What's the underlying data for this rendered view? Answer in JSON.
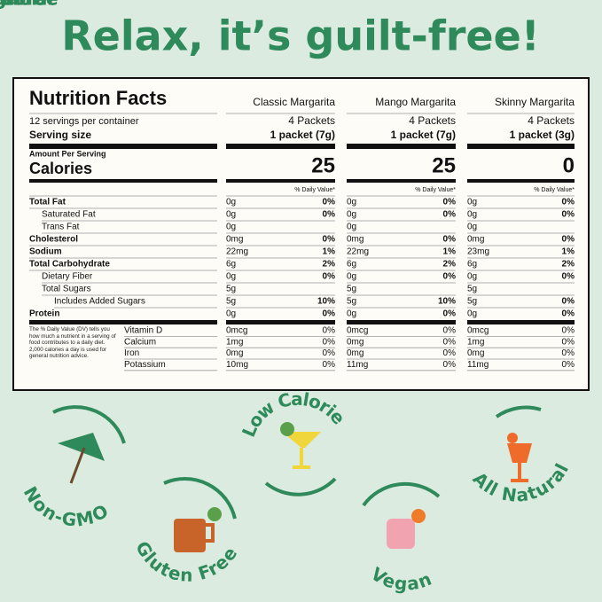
{
  "header": {
    "title": "Relax, it’s guilt-free!"
  },
  "label": {
    "title": "Nutrition Facts",
    "servings": "12 servings per container",
    "serving_size": "Serving size",
    "amount_per_serving": "Amount Per Serving",
    "calories": "Calories",
    "nutrients": [
      "Total Fat",
      "Saturated Fat",
      "Trans Fat",
      "Cholesterol",
      "Sodium",
      "Total Carbohydrate",
      "Dietary Fiber",
      "Total Sugars",
      "Includes Added Sugars",
      "Protein"
    ],
    "vitamins": [
      "Vitamin D",
      "Calcium",
      "Iron",
      "Potassium"
    ],
    "footnote": "The % Daily Value (DV) tells you how much a nutrient in a serving of food contributes to a daily diet. 2,000 calories a day is used for general nutrition advice."
  },
  "products": [
    {
      "name": "Classic Margarita",
      "servings": "4 Packets",
      "serving_size": "1 packet (7g)",
      "calories": "25",
      "daily_value": "% Daily Value*",
      "nutrients": [
        [
          "0g",
          "0%"
        ],
        [
          "0g",
          "0%"
        ],
        [
          "0g"
        ],
        [
          "0mg",
          "0%"
        ],
        [
          "22mg",
          "1%"
        ],
        [
          "6g",
          "2%"
        ],
        [
          "0g",
          "0%"
        ],
        [
          "5g"
        ],
        [
          "5g",
          "10%"
        ],
        [
          "0g",
          "0%"
        ]
      ],
      "vitamins": [
        [
          "0mcg",
          "0%"
        ],
        [
          "1mg",
          "0%"
        ],
        [
          "0mg",
          "0%"
        ],
        [
          "10mg",
          "0%"
        ]
      ]
    },
    {
      "name": "Mango Margarita",
      "servings": "4 Packets",
      "serving_size": "1 packet (7g)",
      "calories": "25",
      "daily_value": "% Daily Value*",
      "nutrients": [
        [
          "0g",
          "0%"
        ],
        [
          "0g",
          "0%"
        ],
        [
          "0g"
        ],
        [
          "0mg",
          "0%"
        ],
        [
          "22mg",
          "1%"
        ],
        [
          "6g",
          "2%"
        ],
        [
          "0g",
          "0%"
        ],
        [
          "5g"
        ],
        [
          "5g",
          "10%"
        ],
        [
          "0g",
          "0%"
        ]
      ],
      "vitamins": [
        [
          "0mcg",
          "0%"
        ],
        [
          "0mg",
          "0%"
        ],
        [
          "0mg",
          "0%"
        ],
        [
          "11mg",
          "0%"
        ]
      ]
    },
    {
      "name": "Skinny Margarita",
      "servings": "4 Packets",
      "serving_size": "1 packet (3g)",
      "calories": "0",
      "daily_value": "% Daily Value*",
      "nutrients": [
        [
          "0g",
          "0%"
        ],
        [
          "0g",
          "0%"
        ],
        [
          "0g"
        ],
        [
          "0mg",
          "0%"
        ],
        [
          "23mg",
          "1%"
        ],
        [
          "6g",
          "2%"
        ],
        [
          "0g",
          "0%"
        ],
        [
          "5g"
        ],
        [
          "5g",
          "0%"
        ],
        [
          "0g",
          "0%"
        ]
      ],
      "vitamins": [
        [
          "0mcg",
          "0%"
        ],
        [
          "1mg",
          "0%"
        ],
        [
          "0mg",
          "0%"
        ],
        [
          "11mg",
          "0%"
        ]
      ]
    }
  ],
  "badges": [
    "Non-GMO",
    "Gluten Free",
    "Low Calorie",
    "Vegan",
    "All Natural"
  ]
}
